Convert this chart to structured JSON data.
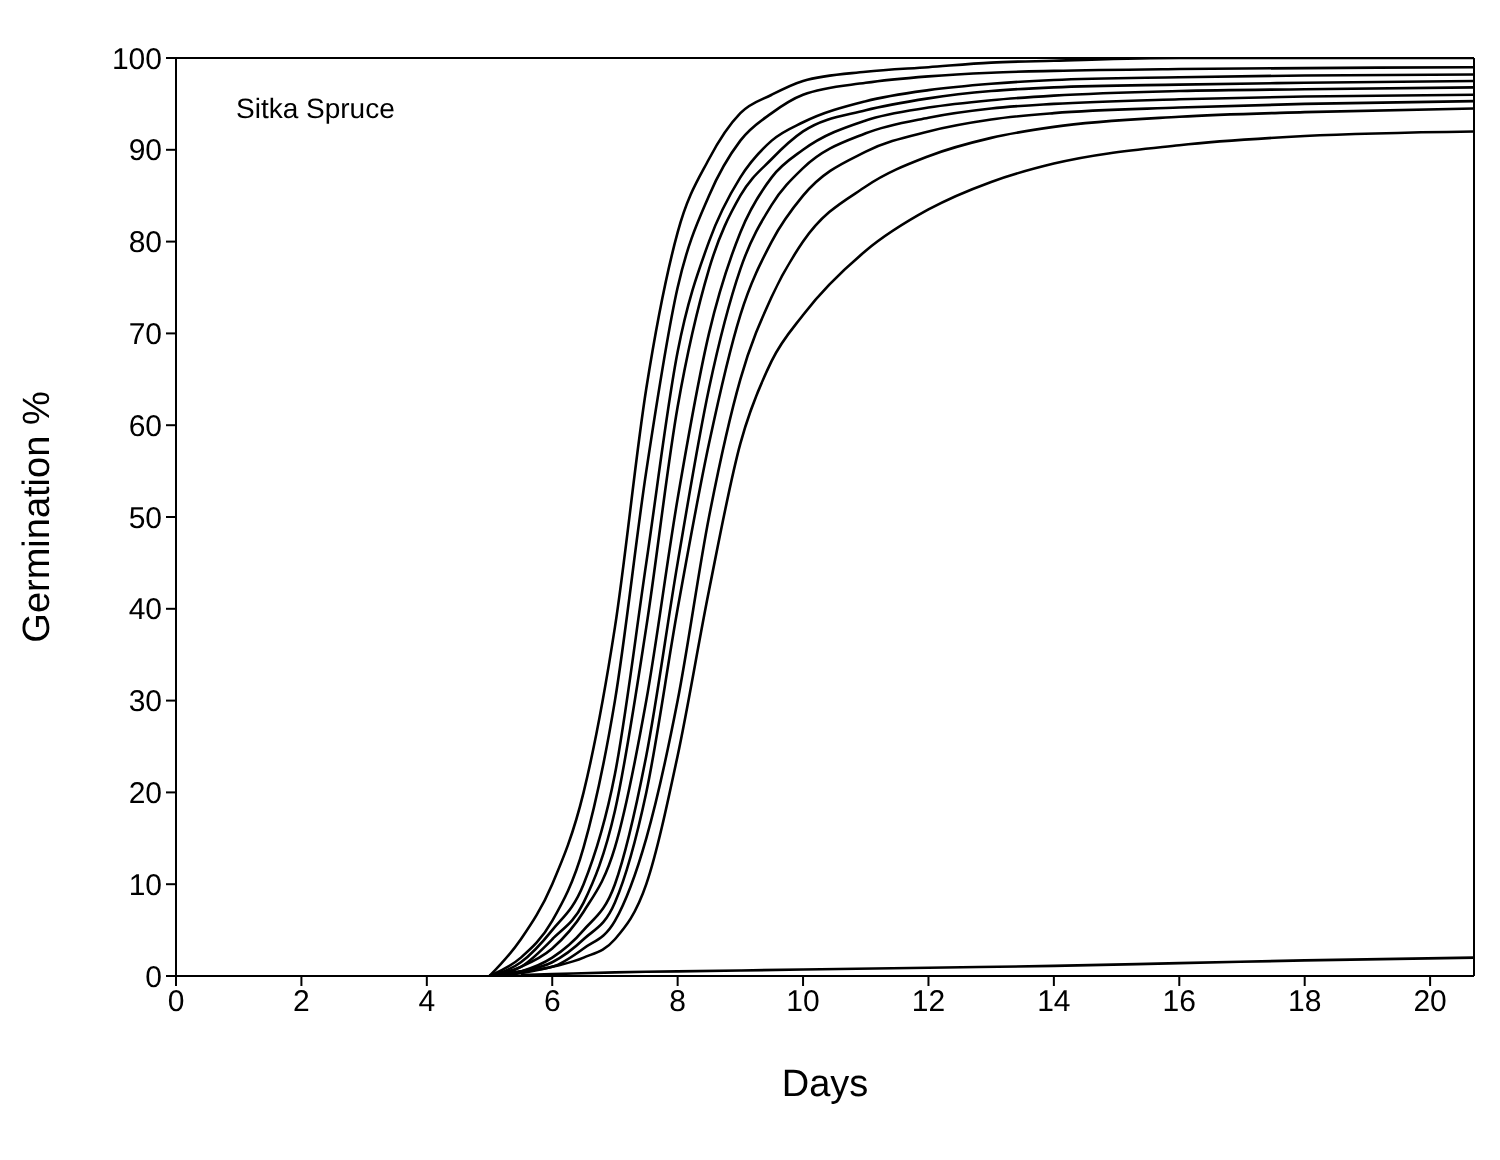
{
  "chart_data": {
    "type": "line",
    "title": "Sitka Spruce",
    "xlabel": "Days",
    "ylabel": "Germination %",
    "x": [
      5,
      5.5,
      6,
      6.5,
      7,
      7.5,
      8,
      8.5,
      9,
      9.5,
      10,
      11,
      12,
      13,
      14,
      16,
      18,
      20.7
    ],
    "series": [
      {
        "color": "#000000",
        "values": [
          0,
          4,
          10,
          20,
          38,
          64,
          81,
          89,
          94,
          96,
          97.5,
          98.5,
          99,
          99.5,
          99.7,
          100,
          100,
          100
        ]
      },
      {
        "color": "#000000",
        "values": [
          0,
          2,
          6,
          14,
          30,
          55,
          75,
          85,
          91,
          94,
          96,
          97.3,
          98,
          98.4,
          98.6,
          98.8,
          98.9,
          99
        ]
      },
      {
        "color": "#000000",
        "values": [
          0,
          1.5,
          5,
          10,
          22,
          45,
          68,
          80,
          87,
          91,
          93,
          95.3,
          96.5,
          97.2,
          97.6,
          97.9,
          98.1,
          98.2
        ]
      },
      {
        "color": "#000000",
        "values": [
          0,
          1,
          4,
          8,
          18,
          38,
          62,
          77,
          85,
          89,
          92,
          94.3,
          95.6,
          96.4,
          96.8,
          97.1,
          97.3,
          97.5
        ]
      },
      {
        "color": "#000000",
        "values": [
          0,
          1,
          3,
          7,
          14,
          30,
          52,
          70,
          81,
          87,
          90,
          93.2,
          94.6,
          95.4,
          95.9,
          96.4,
          96.6,
          96.8
        ]
      },
      {
        "color": "#000000",
        "values": [
          0,
          0.5,
          2,
          5,
          10,
          24,
          45,
          64,
          77,
          84,
          88,
          91.8,
          93.5,
          94.5,
          95,
          95.5,
          95.8,
          96
        ]
      },
      {
        "color": "#000000",
        "values": [
          0,
          0.5,
          1.5,
          4,
          8,
          20,
          40,
          58,
          72,
          80,
          85,
          89.8,
          92,
          93.3,
          94,
          94.6,
          95,
          95.3
        ]
      },
      {
        "color": "#000000",
        "values": [
          0,
          0.5,
          1,
          3,
          6,
          15,
          30,
          50,
          65,
          74,
          80,
          86,
          89.3,
          91.3,
          92.5,
          93.6,
          94.1,
          94.5
        ]
      },
      {
        "color": "#000000",
        "values": [
          0,
          0.3,
          1,
          2,
          4,
          10,
          24,
          42,
          58,
          67,
          72,
          79,
          83.5,
          86.5,
          88.5,
          90.5,
          91.5,
          92
        ]
      },
      {
        "color": "#000000",
        "x": [
          5.5,
          6,
          7,
          8,
          9,
          10,
          12,
          14,
          16,
          18,
          20.7
        ],
        "values": [
          0.1,
          0.2,
          0.4,
          0.5,
          0.6,
          0.7,
          0.9,
          1.1,
          1.4,
          1.7,
          2
        ]
      }
    ],
    "xlim": [
      0,
      20.7
    ],
    "xticks": [
      0,
      2,
      4,
      6,
      8,
      10,
      12,
      14,
      16,
      18,
      20
    ],
    "ylim": [
      0,
      100
    ],
    "yticks": [
      0,
      10,
      20,
      30,
      40,
      50,
      60,
      70,
      80,
      90,
      100
    ],
    "marker": "none",
    "line_style": "solid"
  }
}
